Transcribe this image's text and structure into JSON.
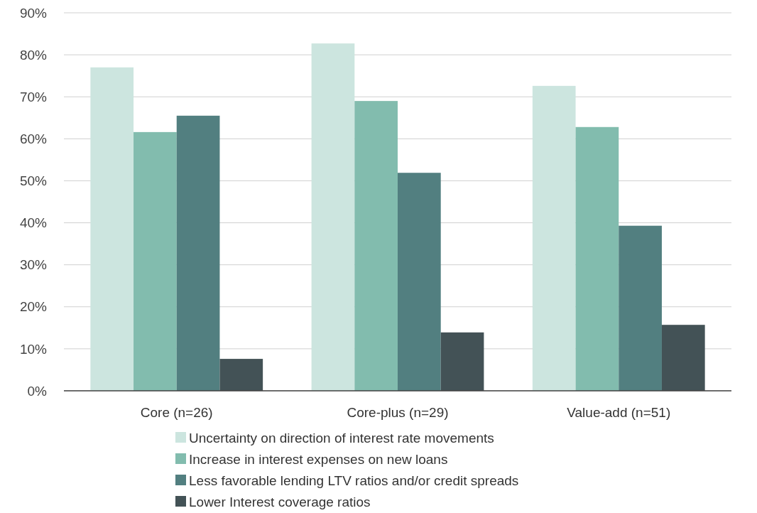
{
  "chart_data": {
    "type": "bar",
    "categories": [
      "Core (n=26)",
      "Core-plus (n=29)",
      "Value-add (n=51)"
    ],
    "series": [
      {
        "name": "Uncertainty on direction of interest rate movements",
        "color": "#cce5df",
        "values": [
          77.0,
          82.7,
          72.6
        ]
      },
      {
        "name": "Increase in interest expenses on new loans",
        "color": "#82bcae",
        "values": [
          61.6,
          69.0,
          62.8
        ]
      },
      {
        "name": "Less favorable lending LTV ratios and/or credit spreads",
        "color": "#527f80",
        "values": [
          65.5,
          51.9,
          39.3
        ]
      },
      {
        "name": "Lower Interest coverage ratios",
        "color": "#435256",
        "values": [
          7.6,
          13.9,
          15.7
        ]
      }
    ],
    "ylim": [
      0,
      90
    ],
    "yticks": [
      {
        "value": 0,
        "label": "0%"
      },
      {
        "value": 10,
        "label": "10%"
      },
      {
        "value": 20,
        "label": "20%"
      },
      {
        "value": 30,
        "label": "30%"
      },
      {
        "value": 40,
        "label": "40%"
      },
      {
        "value": 50,
        "label": "50%"
      },
      {
        "value": 60,
        "label": "60%"
      },
      {
        "value": 70,
        "label": "70%"
      },
      {
        "value": 80,
        "label": "80%"
      },
      {
        "value": 90,
        "label": "90%"
      }
    ],
    "grid": "y",
    "legend": "bottom"
  }
}
